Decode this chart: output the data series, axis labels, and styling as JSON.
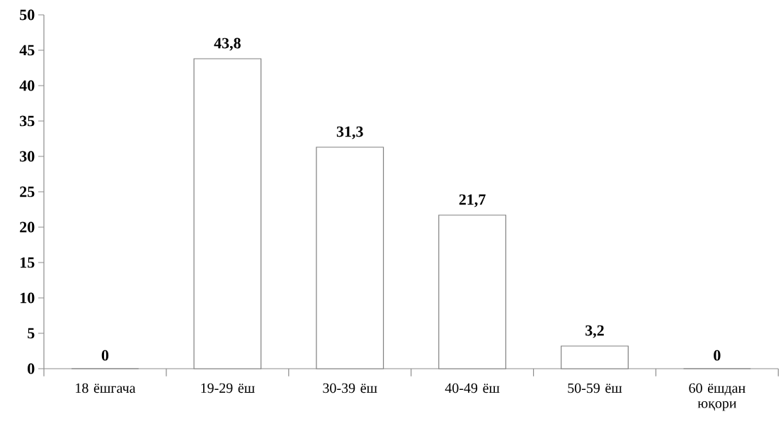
{
  "chart_data": {
    "type": "bar",
    "categories": [
      "18 ёшгача",
      "19-29 ёш",
      "30-39 ёш",
      "40-49 ёш",
      "50-59 ёш",
      "60 ёшдан юқори"
    ],
    "values": [
      0,
      43.8,
      31.3,
      21.7,
      3.2,
      0
    ],
    "value_labels": [
      "0",
      "43,8",
      "31,3",
      "21,7",
      "3,2",
      "0"
    ],
    "color": "#808080",
    "ylim": [
      0,
      50
    ],
    "yticks": [
      0,
      5,
      10,
      15,
      20,
      25,
      30,
      35,
      40,
      45,
      50
    ]
  }
}
